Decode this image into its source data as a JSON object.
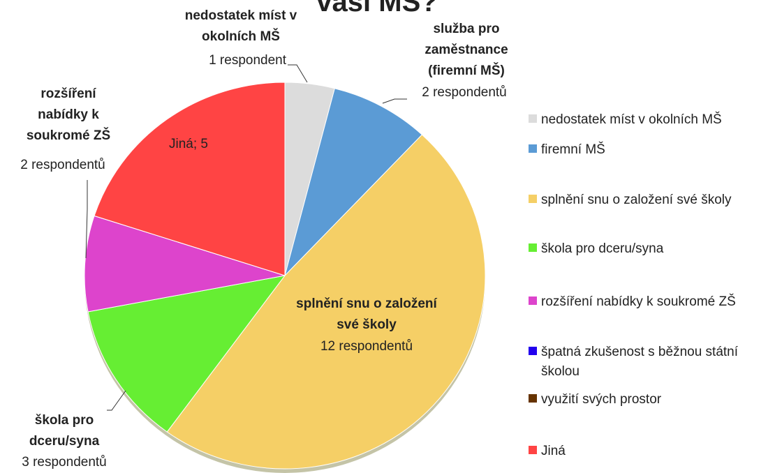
{
  "chart_data": {
    "type": "pie",
    "title": "vaši MŠ?",
    "categories": [
      "nedostatek míst v okolních MŠ",
      "firemní MŠ",
      "splnění snu o založení své školy",
      "škola pro dceru/syna",
      "rozšíření nabídky k soukromé ZŠ",
      "špatná zkušenost s běžnou státní školou",
      "využití svých prostor",
      "Jiná"
    ],
    "values": [
      1,
      2,
      12,
      3,
      2,
      0,
      0,
      5
    ],
    "value_labels": [
      "1 respondent",
      "2 respondentů",
      "12 respondentů",
      "3 respondentů",
      "2 respondentů",
      null,
      null,
      "Jiná; 5"
    ],
    "slice_labels": [
      "nedostatek míst v okolních MŠ",
      "služba pro zaměstnance (firemní MŠ)",
      "splnění snu o založení své školy",
      "škola pro dceru/syna",
      "rozšíření nabídky k soukromé ZŠ",
      null,
      null,
      null
    ],
    "colors": [
      "#dcdcdc",
      "#5b9bd5",
      "#f5cf66",
      "#66ee33",
      "#dd44cc",
      "#2200ee",
      "#663300",
      "#ff4444"
    ],
    "legend": "right"
  }
}
